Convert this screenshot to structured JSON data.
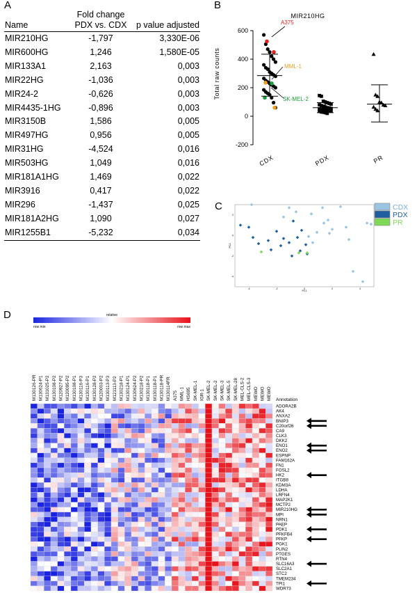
{
  "panels": {
    "a": "A",
    "b": "B",
    "c": "C",
    "d": "D"
  },
  "table_a": {
    "header_top": "Fold change",
    "headers": [
      "Name",
      "PDX vs. CDX",
      "p value adjusted"
    ],
    "rows": [
      [
        "MIR210HG",
        "-1,797",
        "3,330E-06"
      ],
      [
        "MIR600HG",
        "1,246",
        "1,580E-05"
      ],
      [
        "MIR133A1",
        "2,163",
        "0,003"
      ],
      [
        "MIR22HG",
        "-1,036",
        "0,003"
      ],
      [
        "MIR24-2",
        "-0,626",
        "0,003"
      ],
      [
        "MIR4435-1HG",
        "-0,896",
        "0,003"
      ],
      [
        "MIR3150B",
        "1,586",
        "0,005"
      ],
      [
        "MIR497HG",
        "0,956",
        "0,005"
      ],
      [
        "MIR31HG",
        "-4,524",
        "0,016"
      ],
      [
        "MIR503HG",
        "1,049",
        "0,016"
      ],
      [
        "MIR181A1HG",
        "1,469",
        "0,022"
      ],
      [
        "MIR3916",
        "0,417",
        "0,022"
      ],
      [
        "MIR296",
        "-1,437",
        "0,025"
      ],
      [
        "MIR181A2HG",
        "1,090",
        "0,027"
      ],
      [
        "MIR1255B1",
        "-5,232",
        "0,034"
      ]
    ]
  },
  "chart_data": [
    {
      "type": "scatter",
      "title": "MIR210HG",
      "ylabel": "Total raw counts",
      "categories": [
        "CDX",
        "PDX",
        "PR"
      ],
      "ylim": [
        -200,
        600
      ],
      "yticks": [
        -200,
        0,
        200,
        400,
        600
      ],
      "groups": [
        {
          "name": "CDX",
          "mean": 285,
          "sd_low": 140,
          "sd_high": 435,
          "values": [
            570,
            505,
            470,
            450,
            420,
            400,
            380,
            360,
            340,
            330,
            310,
            300,
            290,
            280,
            265,
            250,
            240,
            230,
            220,
            210,
            200,
            185,
            170,
            160,
            150,
            130,
            95,
            60
          ]
        },
        {
          "name": "PDX",
          "mean": 60,
          "sd_low": 25,
          "sd_high": 95,
          "values": [
            145,
            140,
            105,
            100,
            95,
            90,
            85,
            80,
            75,
            70,
            65,
            60,
            58,
            55,
            52,
            50,
            48,
            45,
            42,
            40,
            38,
            35,
            30,
            28,
            25,
            20
          ]
        },
        {
          "name": "PR",
          "mean": 85,
          "sd_low": -40,
          "sd_high": 220,
          "values": [
            435,
            150,
            140,
            100,
            95,
            80,
            75,
            65,
            50,
            40
          ]
        }
      ],
      "highlighted_points": [
        {
          "label": "A375",
          "group": "CDX",
          "value": 525,
          "color": "#e8201e"
        },
        {
          "label": "A375",
          "group": "CDX",
          "value": 450,
          "color": "#e8201e"
        },
        {
          "label": "MML-1",
          "group": "CDX",
          "value": 235,
          "color": "#f0a020"
        },
        {
          "label": "MML-1",
          "group": "CDX",
          "value": 60,
          "color": "#f0a020"
        },
        {
          "label": "SK-MEL-2",
          "group": "CDX",
          "value": 230,
          "color": "#1aa23a"
        },
        {
          "label": "SK-MEL-2",
          "group": "CDX",
          "value": 130,
          "color": "#1aa23a"
        }
      ],
      "annotations": [
        "A375",
        "MML-1",
        "SK-MEL-2"
      ]
    },
    {
      "type": "scatter",
      "title": "",
      "xlabel": "PC1",
      "ylabel": "PC2",
      "xlim": [
        -5,
        5
      ],
      "ylim": [
        -5,
        3
      ],
      "xticks": [
        -4,
        -2,
        0,
        2,
        4
      ],
      "yticks": [
        -4,
        -2,
        0,
        2
      ],
      "legend": [
        "CDX",
        "PDX",
        "PR"
      ],
      "colors": {
        "CDX": "#9bc4e2",
        "PDX": "#1f5f9e",
        "PR": "#7ed957"
      },
      "series": [
        {
          "name": "CDX",
          "points": [
            [
              -3.8,
              3.0
            ],
            [
              -1.5,
              1.8
            ],
            [
              -0.6,
              2.3
            ],
            [
              0.5,
              2.1
            ],
            [
              1.3,
              2.7
            ],
            [
              2.6,
              2.8
            ],
            [
              1.7,
              1.5
            ],
            [
              2.0,
              0.6
            ],
            [
              3.0,
              0.8
            ],
            [
              4.5,
              1.2
            ],
            [
              4.8,
              1.1
            ],
            [
              3.2,
              -0.4
            ],
            [
              0.9,
              0.3
            ],
            [
              1.4,
              1.2
            ],
            [
              0.6,
              -0.7
            ],
            [
              -1.1,
              2.7
            ],
            [
              3.5,
              -3.5
            ],
            [
              4.2,
              -4.5
            ],
            [
              0.3,
              -0.1
            ],
            [
              1.8,
              0.2
            ]
          ]
        },
        {
          "name": "PDX",
          "points": [
            [
              -4.6,
              1.0
            ],
            [
              -4.0,
              0.8
            ],
            [
              -3.7,
              -0.2
            ],
            [
              -3.3,
              -0.8
            ],
            [
              -2.6,
              -0.5
            ],
            [
              -2.0,
              0.4
            ],
            [
              -1.7,
              -1.0
            ],
            [
              -1.1,
              -0.7
            ],
            [
              -0.9,
              -2.0
            ],
            [
              -0.5,
              -0.2
            ],
            [
              -0.2,
              0.5
            ],
            [
              0.1,
              -0.9
            ],
            [
              -0.3,
              -1.5
            ],
            [
              0.2,
              -1.8
            ],
            [
              -2.4,
              -1.4
            ],
            [
              -0.8,
              1.4
            ],
            [
              -1.5,
              -0.3
            ]
          ]
        },
        {
          "name": "PR",
          "points": [
            [
              -3.1,
              -1.6
            ],
            [
              -0.4,
              -1.7
            ],
            [
              0.2,
              -1.7
            ]
          ]
        }
      ]
    },
    {
      "type": "heatmap",
      "color_scale_title": "relative",
      "color_scale_min": "row min",
      "color_scale_max": "row max",
      "columns": [
        "M130126-PR",
        "M130624-P1",
        "M131025-P2",
        "M130108-P2",
        "M120927-P2",
        "M120095-P2",
        "M130108-P1",
        "M130116-P3",
        "M130116-P1",
        "M130128-P2",
        "M120003-P2",
        "M130113-P3",
        "M121113-P2",
        "M130218-P1",
        "M130124-P1",
        "M130624-P2",
        "M130218-P2",
        "M130118-P1",
        "M130118-P1",
        "M130118-PR",
        "M130114FR",
        "A375",
        "MML-1",
        "HS695",
        "SK-MEL-1",
        "IGR-1",
        "SK-MEL-2",
        "SK-MEL-2",
        "SK-MEL-3",
        "SK-MEL-5",
        "SK-MEL-28",
        "MEL-CLS-2",
        "MEL-CLS-3",
        "MEWO",
        "MEWO",
        "MEWO"
      ],
      "rows": [
        "ADORA2B",
        "AK4",
        "ANXA2",
        "BNIP3",
        "C20orf26",
        "CA9",
        "CLK3",
        "DKK2",
        "ENO1",
        "ENO2",
        "ESPNP",
        "FAM162A",
        "FN1",
        "FOSL2",
        "HK2",
        "ITGB8",
        "KDM3A",
        "LDHA",
        "LRFN4",
        "MAP2K1",
        "MCTP2",
        "MIR210HG",
        "MPI",
        "NRN1",
        "PAEP",
        "PDK1",
        "PFKFB4",
        "PFKP",
        "PGK1",
        "PLIN2",
        "PTGES",
        "RTN4",
        "SLC16A3",
        "SLC2A1",
        "STC2",
        "TMEM234",
        "TPI1",
        "WDR73"
      ],
      "annotation_title": "Annotation",
      "arrowed_rows": [
        "BNIP3",
        "C20orf26",
        "ENO1",
        "ENO2",
        "HK2",
        "MIR210HG",
        "MPI",
        "PDK1",
        "PFKP",
        "SLC16A3",
        "TPI1"
      ],
      "values": []
    }
  ]
}
